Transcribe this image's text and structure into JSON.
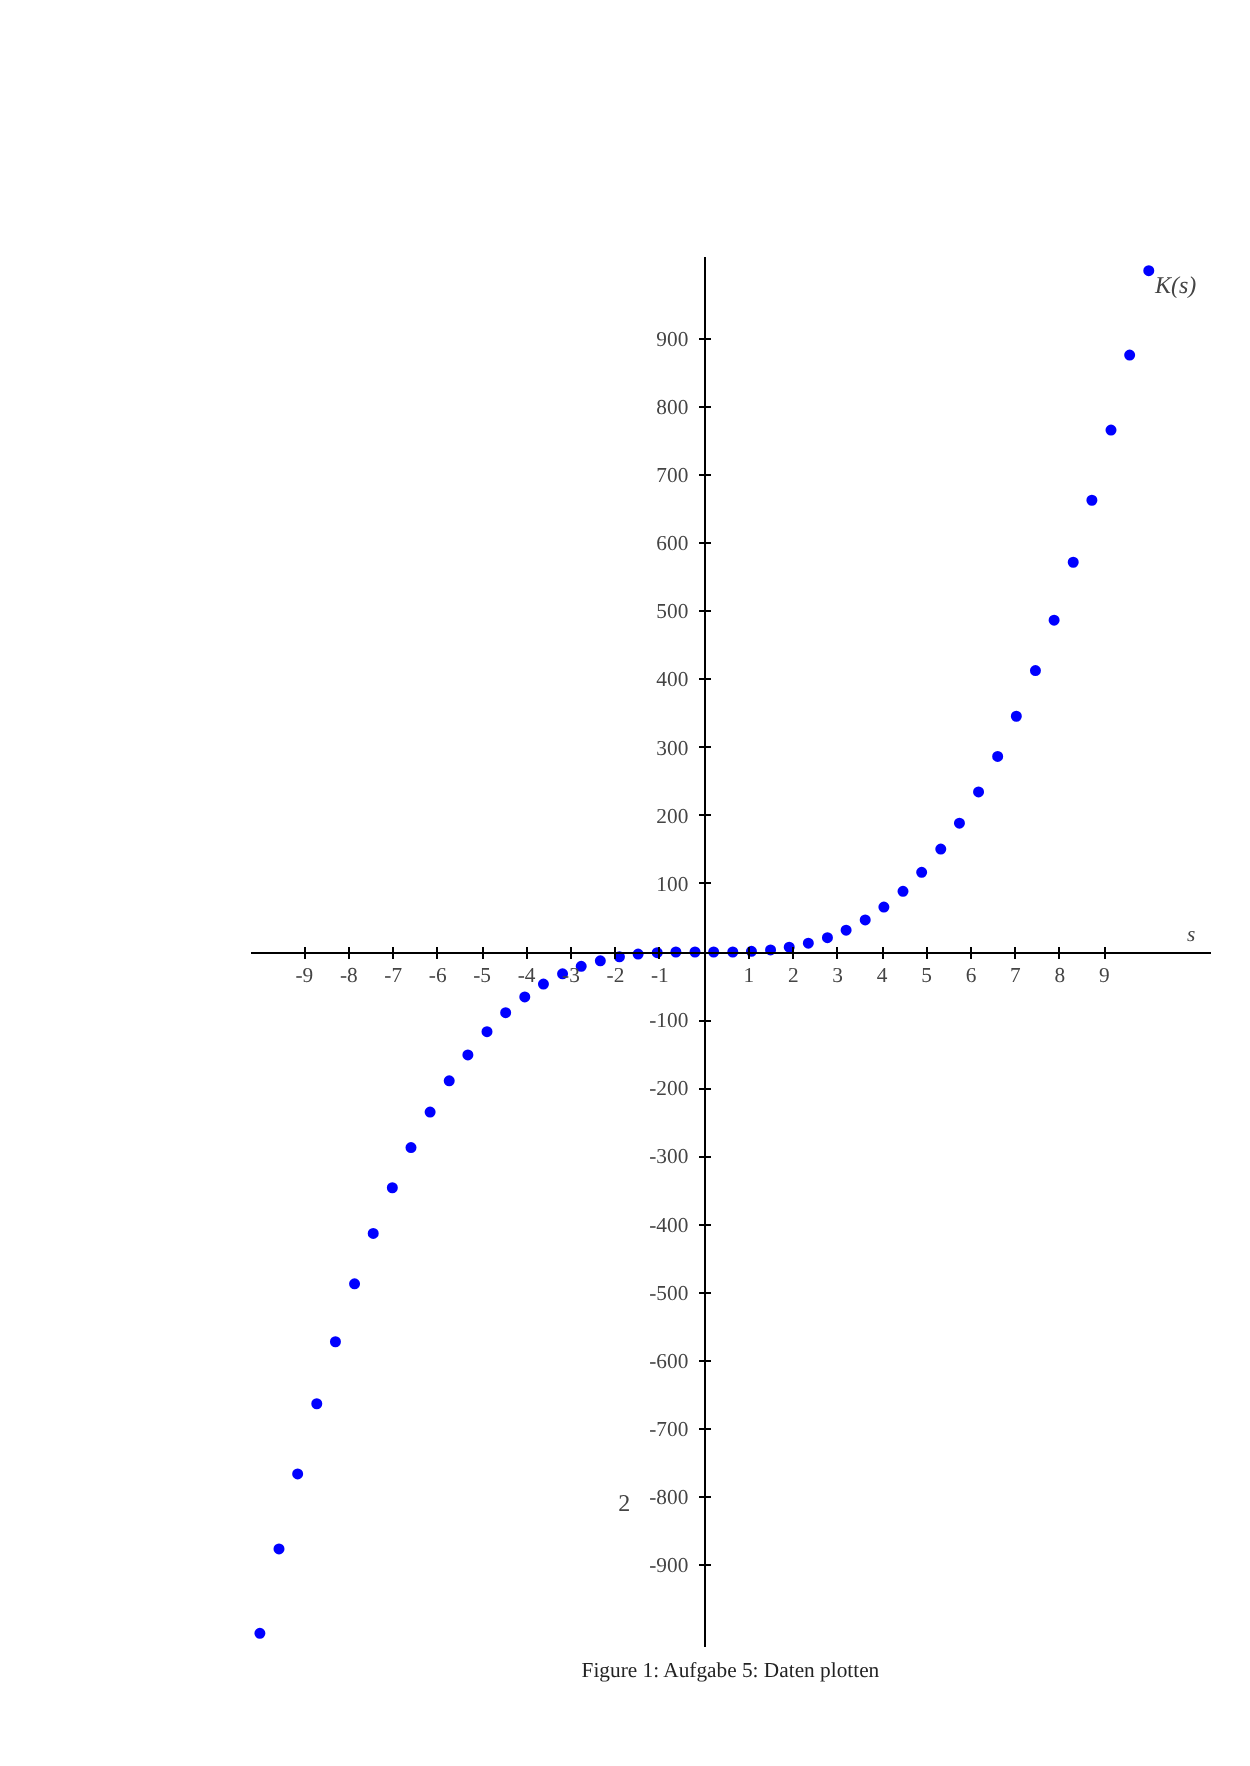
{
  "chart_data": {
    "type": "scatter",
    "xlabel": "s",
    "ylabel": "K(s)",
    "x": [
      -10,
      -9.57,
      -9.15,
      -8.72,
      -8.3,
      -7.87,
      -7.45,
      -7.02,
      -6.6,
      -6.17,
      -5.74,
      -5.32,
      -4.89,
      -4.47,
      -4.04,
      -3.62,
      -3.19,
      -2.77,
      -2.34,
      -1.91,
      -1.49,
      -1.06,
      -0.64,
      -0.21,
      0.21,
      0.64,
      1.06,
      1.49,
      1.91,
      2.34,
      2.77,
      3.19,
      3.62,
      4.04,
      4.47,
      4.89,
      5.32,
      5.74,
      6.17,
      6.6,
      7.02,
      7.45,
      7.87,
      8.3,
      8.72,
      9.15,
      9.57,
      10
    ],
    "series": [
      {
        "color": "#0000ff",
        "values": [
          -1000,
          -876,
          -766,
          -663,
          -572,
          -487,
          -413,
          -346,
          -287,
          -235,
          -189,
          -151,
          -117,
          -89,
          -66,
          -47,
          -32,
          -21,
          -13,
          -7,
          -3,
          -1,
          0,
          0,
          0,
          0,
          1,
          3,
          7,
          13,
          21,
          32,
          47,
          66,
          89,
          117,
          151,
          189,
          235,
          287,
          346,
          413,
          487,
          572,
          663,
          766,
          876,
          1000
        ]
      }
    ],
    "xlim": [
      -10.2,
      11.4
    ],
    "ylim": [
      -1020,
      1020
    ],
    "xticks": [
      -9,
      -8,
      -7,
      -6,
      -5,
      -4,
      -3,
      -2,
      -1,
      1,
      2,
      3,
      4,
      5,
      6,
      7,
      8,
      9
    ],
    "yticks": [
      -900,
      -800,
      -700,
      -600,
      -500,
      -400,
      -300,
      -200,
      -100,
      100,
      200,
      300,
      400,
      500,
      600,
      700,
      800,
      900
    ],
    "marker": "circle",
    "grid": false,
    "annotations": [
      "2",
      "Figure 1: Aufgabe 5: Daten plotten"
    ]
  }
}
